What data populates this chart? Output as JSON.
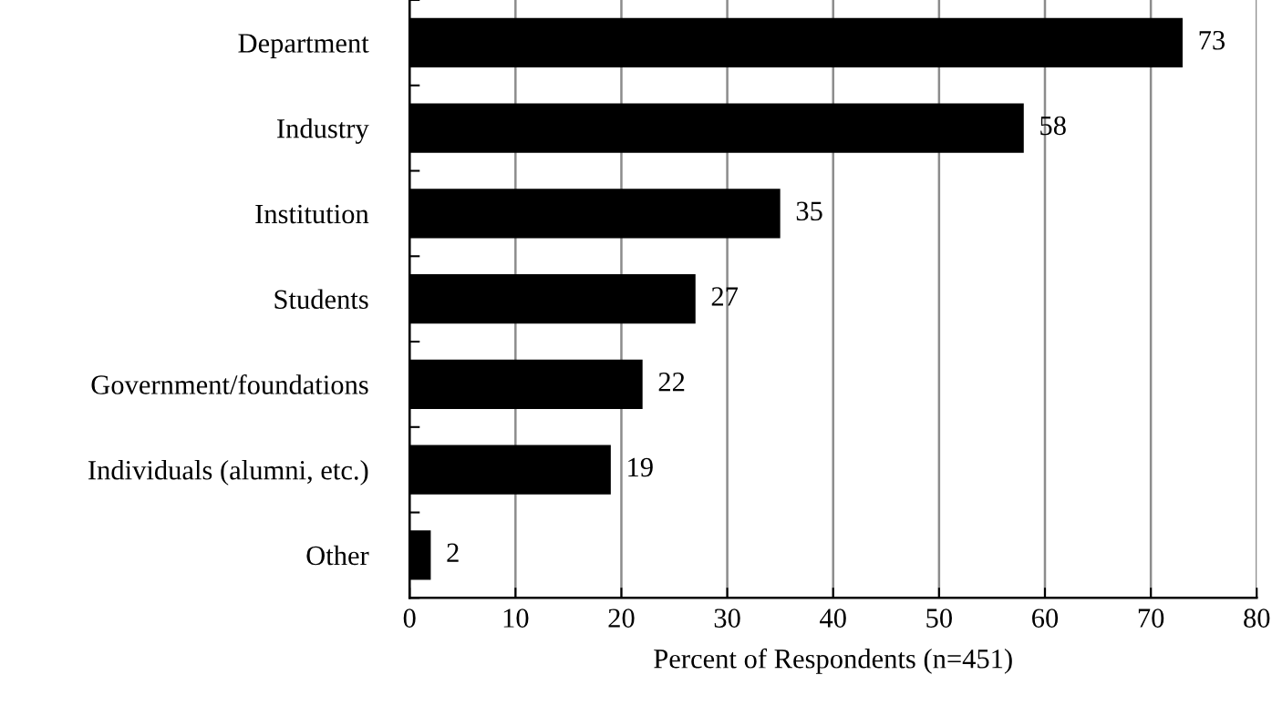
{
  "chart_data": {
    "type": "bar",
    "orientation": "horizontal",
    "xlabel": "Percent of Respondents (n=451)",
    "categories": [
      "Department",
      "Industry",
      "Institution",
      "Students",
      "Government/foundations",
      "Individuals (alumni, etc.)",
      "Other"
    ],
    "values": [
      73,
      58,
      35,
      27,
      22,
      19,
      2
    ],
    "color": "#000000",
    "xlim": [
      0,
      80
    ],
    "xticks": [
      0,
      10,
      20,
      30,
      40,
      50,
      60,
      70,
      80
    ],
    "grid": "x",
    "data_labels": true
  }
}
